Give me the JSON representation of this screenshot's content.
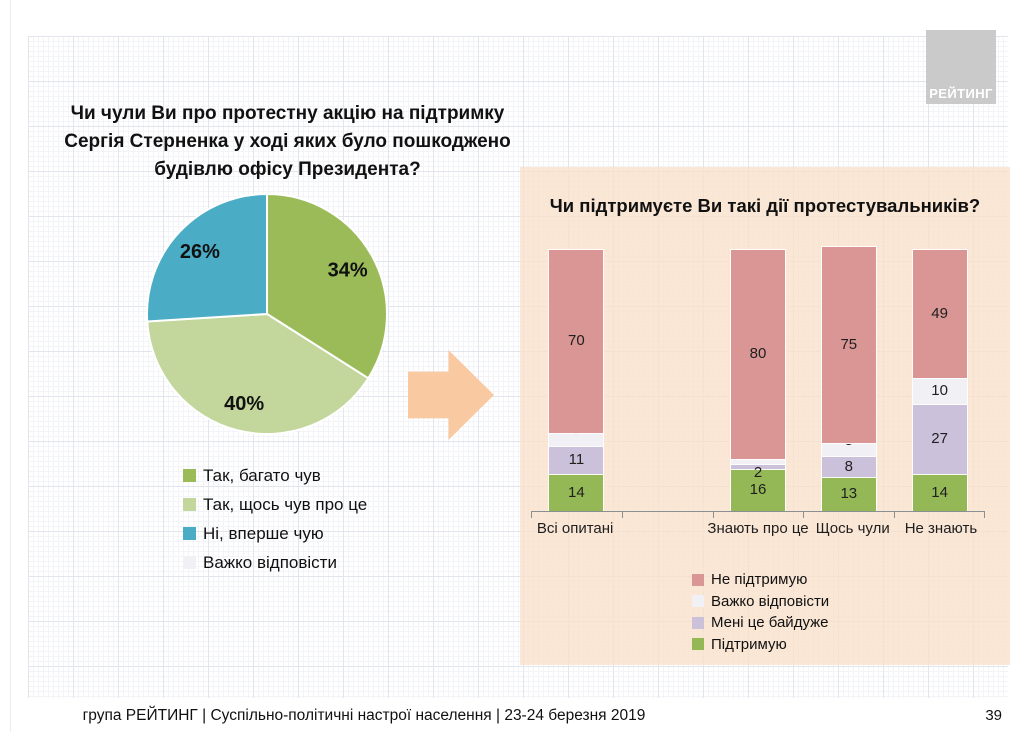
{
  "slide": {
    "footer": "група РЕЙТИНГ | Суспільно-політичні настрої населення  | 23-24 березня 2019",
    "page_number": "39",
    "logo_text": "РЕЙТИНГ"
  },
  "colors": {
    "panel_background": "#fbe7d6",
    "arrow": "#f9c9a2",
    "logo_background": "#cacaca"
  },
  "chart_data": [
    {
      "type": "pie",
      "title": "Чи чули Ви про протестну акцію на підтримку Сергія Стерненка у ході яких було пошкоджено будівлю офісу Президента?",
      "labels": [
        "Так, багато чув",
        "Так, щось чув про це",
        "Ні, вперше чую",
        "Важко відповісти"
      ],
      "values": [
        34,
        40,
        26,
        0
      ],
      "colors": [
        "#9bbb59",
        "#c3d69b",
        "#4bacc6",
        "#f1f0f4"
      ],
      "data_labels": [
        "34%",
        "40%",
        "26%"
      ],
      "start_angle": "top",
      "direction": "clockwise",
      "legend_position": "bottom-left"
    },
    {
      "type": "bar",
      "subtype": "stacked-vertical",
      "title": "Чи підтримуєте Ви такі дії протестувальників?",
      "categories": [
        "Всі опитані",
        "Знають про це",
        "Щось чули",
        "Не знають"
      ],
      "series": [
        {
          "name": "Підтримую",
          "color": "#94b855",
          "values": [
            14,
            16,
            13,
            14
          ]
        },
        {
          "name": "Мені це байдуже",
          "color": "#ccc1db",
          "values": [
            11,
            2,
            8,
            27
          ]
        },
        {
          "name": "Важко відповісти",
          "color": "#f1f0f5",
          "values": [
            5,
            2,
            5,
            10
          ]
        },
        {
          "name": "Не підтримую",
          "color": "#d99694",
          "values": [
            70,
            80,
            75,
            49
          ]
        }
      ],
      "stack_order": "bottom-to-top",
      "ylim": [
        0,
        100
      ],
      "grid": false,
      "slot_map": [
        0,
        null,
        1,
        2,
        3
      ],
      "legend_order": [
        "Не підтримую",
        "Важко відповісти",
        "Мені це байдуже",
        "Підтримую"
      ],
      "legend_position": "bottom"
    }
  ]
}
